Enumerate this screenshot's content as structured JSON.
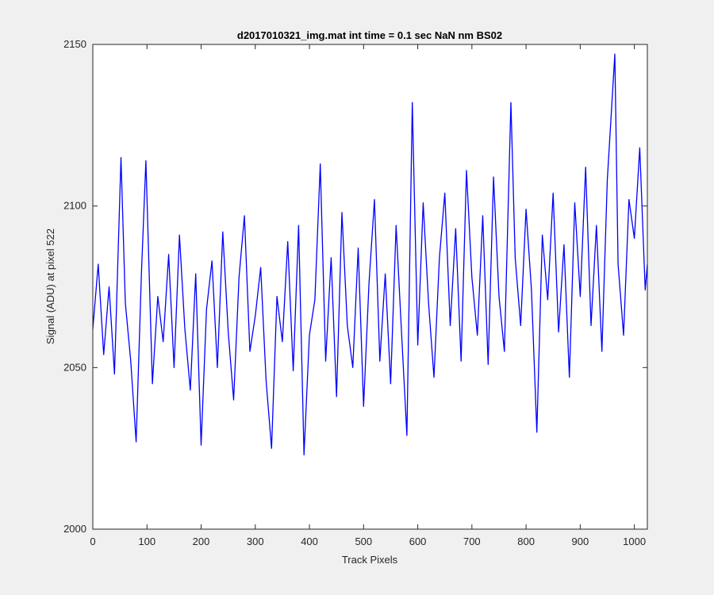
{
  "chart_data": {
    "type": "line",
    "title": "d2017010321_img.mat int time = 0.1 sec  NaN nm BS02",
    "xlabel": "Track Pixels",
    "ylabel": "Signal (ADU) at pixel 522",
    "xlim": [
      0,
      1024
    ],
    "ylim": [
      2000,
      2150
    ],
    "xticks": [
      0,
      100,
      200,
      300,
      400,
      500,
      600,
      700,
      800,
      900,
      1000
    ],
    "yticks": [
      2000,
      2050,
      2100,
      2150
    ],
    "grid": false,
    "series": [
      {
        "color": "#0000ff",
        "x": [
          0,
          10,
          20,
          30,
          40,
          52,
          60,
          70,
          80,
          90,
          98,
          110,
          120,
          130,
          140,
          150,
          160,
          170,
          180,
          190,
          200,
          210,
          220,
          230,
          240,
          250,
          260,
          270,
          280,
          290,
          300,
          310,
          320,
          330,
          340,
          350,
          360,
          370,
          380,
          390,
          400,
          410,
          420,
          430,
          440,
          450,
          460,
          470,
          480,
          490,
          500,
          510,
          520,
          530,
          540,
          550,
          560,
          570,
          580,
          590,
          600,
          610,
          620,
          630,
          640,
          650,
          660,
          670,
          680,
          690,
          700,
          710,
          720,
          730,
          740,
          750,
          760,
          772,
          780,
          790,
          800,
          810,
          820,
          830,
          840,
          850,
          860,
          870,
          880,
          890,
          900,
          910,
          920,
          930,
          940,
          950,
          964,
          970,
          980,
          990,
          1000,
          1010,
          1020,
          1024
        ],
        "y": [
          2062,
          2082,
          2054,
          2075,
          2048,
          2115,
          2070,
          2052,
          2027,
          2080,
          2114,
          2045,
          2072,
          2058,
          2085,
          2050,
          2091,
          2062,
          2043,
          2079,
          2026,
          2068,
          2083,
          2050,
          2092,
          2061,
          2040,
          2078,
          2097,
          2055,
          2066,
          2081,
          2046,
          2025,
          2072,
          2058,
          2089,
          2049,
          2094,
          2023,
          2060,
          2071,
          2113,
          2052,
          2084,
          2041,
          2098,
          2063,
          2050,
          2087,
          2038,
          2076,
          2102,
          2052,
          2079,
          2045,
          2094,
          2061,
          2029,
          2132,
          2057,
          2101,
          2070,
          2047,
          2084,
          2104,
          2063,
          2093,
          2052,
          2111,
          2078,
          2060,
          2097,
          2051,
          2109,
          2072,
          2055,
          2132,
          2084,
          2063,
          2099,
          2074,
          2030,
          2091,
          2071,
          2104,
          2061,
          2088,
          2047,
          2101,
          2072,
          2112,
          2063,
          2094,
          2055,
          2108,
          2147,
          2082,
          2060,
          2102,
          2090,
          2118,
          2074,
          2082
        ]
      }
    ]
  }
}
